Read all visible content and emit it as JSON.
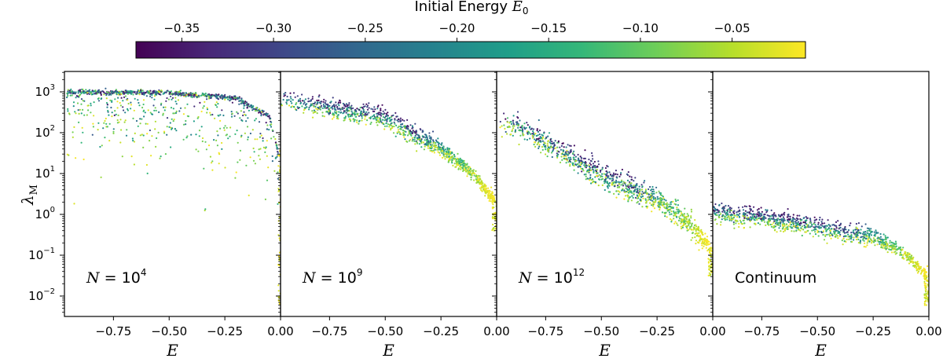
{
  "chart_data": {
    "type": "scatter",
    "colorbar": {
      "label": "Initial Energy E_0",
      "label_text": "Initial Energy ",
      "label_symbol": "E",
      "label_sub": "0",
      "range": [
        -0.375,
        -0.01
      ],
      "ticks": [
        -0.35,
        -0.3,
        -0.25,
        -0.2,
        -0.15,
        -0.1,
        -0.05
      ],
      "tick_labels": [
        "−0.35",
        "−0.30",
        "−0.25",
        "−0.20",
        "−0.15",
        "−0.10",
        "−0.05"
      ],
      "colormap": [
        "#440154",
        "#482878",
        "#3e4989",
        "#31688e",
        "#26828e",
        "#1f9e89",
        "#35b779",
        "#6ece58",
        "#b5de2b",
        "#fde725"
      ]
    },
    "shared_y": {
      "label": "λ_M",
      "label_symbol": "λ",
      "label_sub": "M",
      "scale": "log",
      "ylim_log10": [
        -2.5,
        3.5
      ],
      "ticks_log10": [
        -2,
        -1,
        0,
        1,
        2,
        3
      ],
      "tick_bases": [
        "10",
        "10",
        "10",
        "10",
        "10",
        "10"
      ],
      "tick_exps": [
        "−2",
        "−1",
        "0",
        "1",
        "2",
        "3"
      ]
    },
    "xlim": [
      -0.97,
      0.0
    ],
    "x_ticks": [
      -0.75,
      -0.5,
      -0.25,
      0.0
    ],
    "x_tick_labels": [
      "−0.75",
      "−0.50",
      "−0.25",
      "0.00"
    ],
    "xlabel": "E",
    "panels": [
      {
        "annotation": "N = 10^4",
        "ann_lhs": "N",
        "ann_rel": " = 10",
        "ann_sup": "4",
        "model": "saturated",
        "trend": [
          {
            "x": -0.95,
            "y": 3.0
          },
          {
            "x": -0.5,
            "y": 2.98
          },
          {
            "x": -0.2,
            "y": 2.85
          },
          {
            "x": -0.05,
            "y": 2.4
          },
          {
            "x": -0.01,
            "y": 1.5
          }
        ]
      },
      {
        "annotation": "N = 10^9",
        "ann_lhs": "N",
        "ann_rel": " = 10",
        "ann_sup": "9",
        "model": "decay",
        "trend": [
          {
            "x": -0.93,
            "y": 2.9
          },
          {
            "x": -0.5,
            "y": 2.5
          },
          {
            "x": -0.25,
            "y": 1.7
          },
          {
            "x": -0.1,
            "y": 1.0
          },
          {
            "x": -0.02,
            "y": 0.4
          }
        ]
      },
      {
        "annotation": "N = 10^12",
        "ann_lhs": "N",
        "ann_rel": " = 10",
        "ann_sup": "12",
        "model": "decay",
        "trend": [
          {
            "x": -0.9,
            "y": 2.4
          },
          {
            "x": -0.5,
            "y": 1.1
          },
          {
            "x": -0.25,
            "y": 0.45
          },
          {
            "x": -0.1,
            "y": -0.2
          },
          {
            "x": -0.02,
            "y": -0.8
          }
        ]
      },
      {
        "annotation": "Continuum",
        "ann_lhs": "",
        "ann_rel": "Continuum",
        "ann_sup": "",
        "model": "decay",
        "trend": [
          {
            "x": -0.96,
            "y": 0.2
          },
          {
            "x": -0.5,
            "y": -0.15
          },
          {
            "x": -0.25,
            "y": -0.45
          },
          {
            "x": -0.1,
            "y": -0.95
          },
          {
            "x": -0.02,
            "y": -1.45
          }
        ]
      }
    ]
  }
}
